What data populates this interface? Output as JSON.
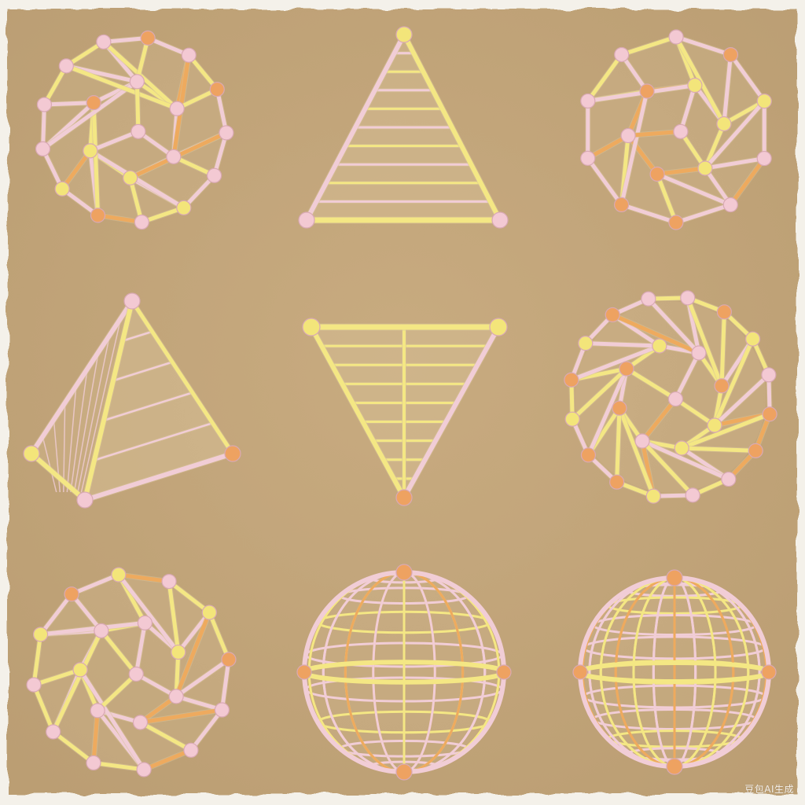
{
  "watermark": {
    "text": "豆包AI生成"
  },
  "colors": {
    "paper": "#f4f1ea",
    "board": "#c3a67a",
    "board_shadow": "#b59a70",
    "rod_yellow": "#f4e784",
    "rod_pink": "#f1cdd6",
    "rod_orange": "#eeaa5e",
    "node_pink": "#f3c9d3",
    "node_yellow": "#f3e57a",
    "node_orange": "#eea261",
    "node_outline": "#d9a9b4"
  },
  "shapes": [
    {
      "kind": "polyhedron",
      "icon": "icosahedron-wireframe-icon"
    },
    {
      "kind": "triangle-up",
      "icon": "striped-triangle-icon"
    },
    {
      "kind": "polyhedron",
      "icon": "dodecahedron-wireframe-icon"
    },
    {
      "kind": "pyramid",
      "icon": "tetrahedron-pyramid-icon"
    },
    {
      "kind": "triangle-down",
      "icon": "inverted-triangle-grid-icon"
    },
    {
      "kind": "polyhedron",
      "icon": "truncated-icosahedron-wireframe-icon"
    },
    {
      "kind": "polyhedron",
      "icon": "geodesic-polyhedron-icon"
    },
    {
      "kind": "sphere",
      "icon": "globe-wireframe-icon"
    },
    {
      "kind": "sphere",
      "icon": "grid-sphere-wireframe-icon"
    }
  ]
}
